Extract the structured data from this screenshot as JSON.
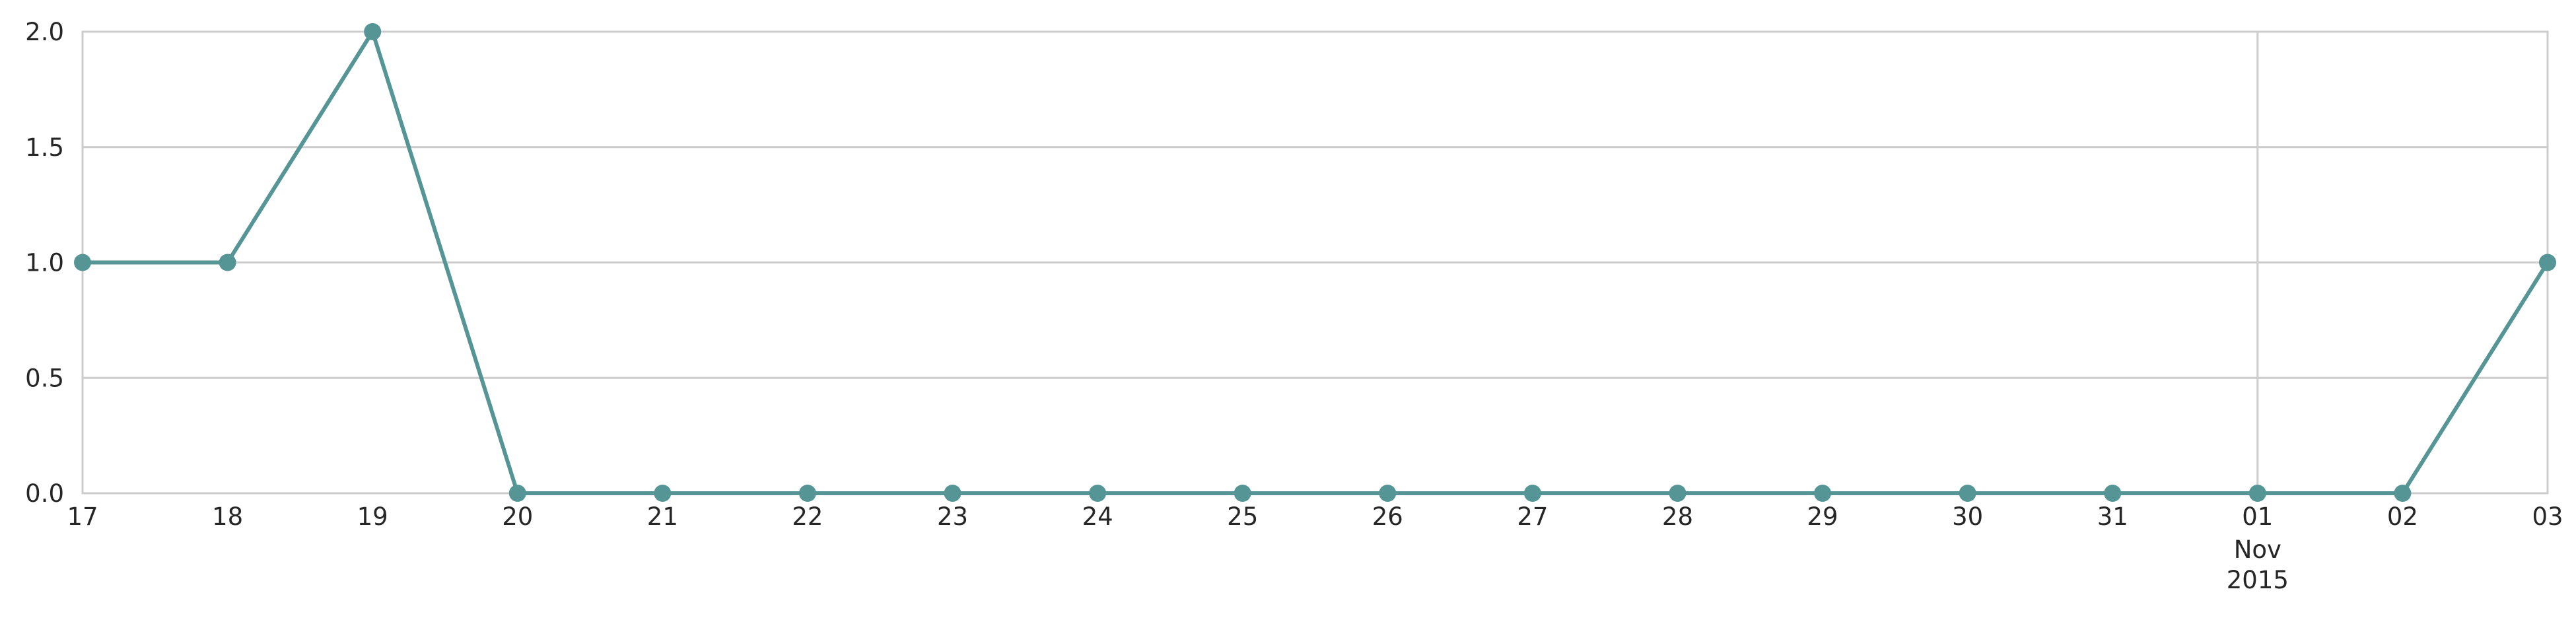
{
  "chart_data": {
    "type": "line",
    "title": "",
    "xlabel": "",
    "ylabel": "",
    "x": [
      "2015-10-17",
      "2015-10-18",
      "2015-10-19",
      "2015-10-20",
      "2015-10-21",
      "2015-10-22",
      "2015-10-23",
      "2015-10-24",
      "2015-10-25",
      "2015-10-26",
      "2015-10-27",
      "2015-10-28",
      "2015-10-29",
      "2015-10-30",
      "2015-10-31",
      "2015-11-01",
      "2015-11-02",
      "2015-11-03"
    ],
    "x_tick_labels": [
      "17",
      "18",
      "19",
      "20",
      "21",
      "22",
      "23",
      "24",
      "25",
      "26",
      "27",
      "28",
      "29",
      "30",
      "31",
      "01",
      "02",
      "03"
    ],
    "x_secondary_label": {
      "tick": "01",
      "lines": [
        "Nov",
        "2015"
      ]
    },
    "series": [
      {
        "values": [
          1,
          1,
          2,
          0,
          0,
          0,
          0,
          0,
          0,
          0,
          0,
          0,
          0,
          0,
          0,
          0,
          0,
          1
        ],
        "color": "#559595",
        "marker": "circle"
      }
    ],
    "ylim": [
      0,
      2
    ],
    "y_ticks": [
      "0.0",
      "0.5",
      "1.0",
      "1.5",
      "2.0"
    ],
    "y_tick_values": [
      0,
      0.5,
      1.0,
      1.5,
      2.0
    ],
    "grid": true,
    "vertical_gridlines_at": [
      "01"
    ],
    "legend": "none"
  }
}
